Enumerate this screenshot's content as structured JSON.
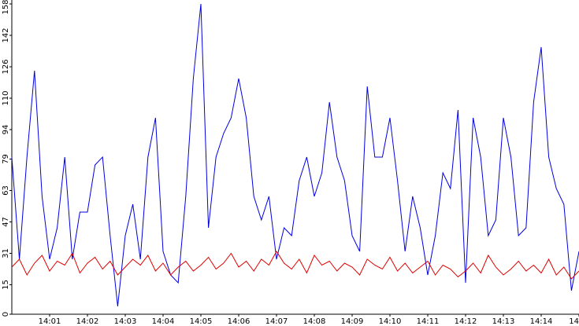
{
  "chart_data": {
    "type": "line",
    "x": [
      0,
      0.2,
      0.4,
      0.6,
      0.8,
      1,
      1.2,
      1.4,
      1.6,
      1.8,
      2,
      2.2,
      2.4,
      2.6,
      2.8,
      3,
      3.2,
      3.4,
      3.6,
      3.8,
      4,
      4.2,
      4.4,
      4.6,
      4.8,
      5,
      5.2,
      5.4,
      5.6,
      5.8,
      6,
      6.2,
      6.4,
      6.6,
      6.8,
      7,
      7.2,
      7.4,
      7.6,
      7.8,
      8,
      8.2,
      8.4,
      8.6,
      8.8,
      9,
      9.2,
      9.4,
      9.6,
      9.8,
      10,
      10.2,
      10.4,
      10.6,
      10.8,
      11,
      11.2,
      11.4,
      11.6,
      11.8,
      12,
      12.2,
      12.4,
      12.6,
      12.8,
      13,
      13.2,
      13.4,
      13.6,
      13.8,
      14,
      14.2,
      14.4,
      14.6,
      14.8,
      15
    ],
    "series": [
      {
        "color": "#0000e0",
        "values": [
          80,
          28,
          80,
          124,
          60,
          28,
          44,
          80,
          28,
          52,
          52,
          76,
          80,
          40,
          4,
          40,
          56,
          28,
          80,
          100,
          32,
          20,
          16,
          60,
          120,
          158,
          44,
          80,
          92,
          100,
          120,
          100,
          60,
          48,
          60,
          28,
          44,
          40,
          68,
          80,
          60,
          72,
          108,
          80,
          68,
          40,
          32,
          116,
          80,
          80,
          100,
          68,
          32,
          60,
          44,
          20,
          40,
          72,
          64,
          104,
          16,
          100,
          80,
          40,
          48,
          100,
          80,
          40,
          44,
          108,
          136,
          80,
          64,
          56,
          12,
          32
        ]
      },
      {
        "color": "#e00000",
        "values": [
          24,
          28,
          20,
          26,
          30,
          22,
          27,
          25,
          31,
          21,
          26,
          29,
          23,
          27,
          20,
          24,
          28,
          25,
          30,
          22,
          26,
          20,
          24,
          27,
          22,
          25,
          29,
          23,
          26,
          31,
          24,
          27,
          22,
          28,
          25,
          32,
          26,
          23,
          28,
          21,
          30,
          25,
          27,
          22,
          26,
          24,
          20,
          28,
          25,
          23,
          29,
          22,
          26,
          21,
          24,
          27,
          20,
          25,
          23,
          19,
          22,
          26,
          21,
          30,
          24,
          20,
          23,
          27,
          22,
          25,
          21,
          28,
          20,
          24,
          18,
          22
        ]
      }
    ],
    "xlim": [
      0,
      15
    ],
    "xticks": [
      {
        "value": 1,
        "label": "14:01"
      },
      {
        "value": 2,
        "label": "14:02"
      },
      {
        "value": 3,
        "label": "14:03"
      },
      {
        "value": 4,
        "label": "14:04"
      },
      {
        "value": 5,
        "label": "14:05"
      },
      {
        "value": 6,
        "label": "14:06"
      },
      {
        "value": 7,
        "label": "14:07"
      },
      {
        "value": 8,
        "label": "14:08"
      },
      {
        "value": 9,
        "label": "14:09"
      },
      {
        "value": 10,
        "label": "14:10"
      },
      {
        "value": 11,
        "label": "14:11"
      },
      {
        "value": 12,
        "label": "14:12"
      },
      {
        "value": 13,
        "label": "14:13"
      },
      {
        "value": 14,
        "label": "14:14"
      },
      {
        "value": 15,
        "label": "14"
      }
    ],
    "ylim": [
      0,
      158
    ],
    "yticks": [
      0,
      15,
      31,
      47,
      63,
      79,
      94,
      110,
      126,
      142,
      158
    ]
  }
}
